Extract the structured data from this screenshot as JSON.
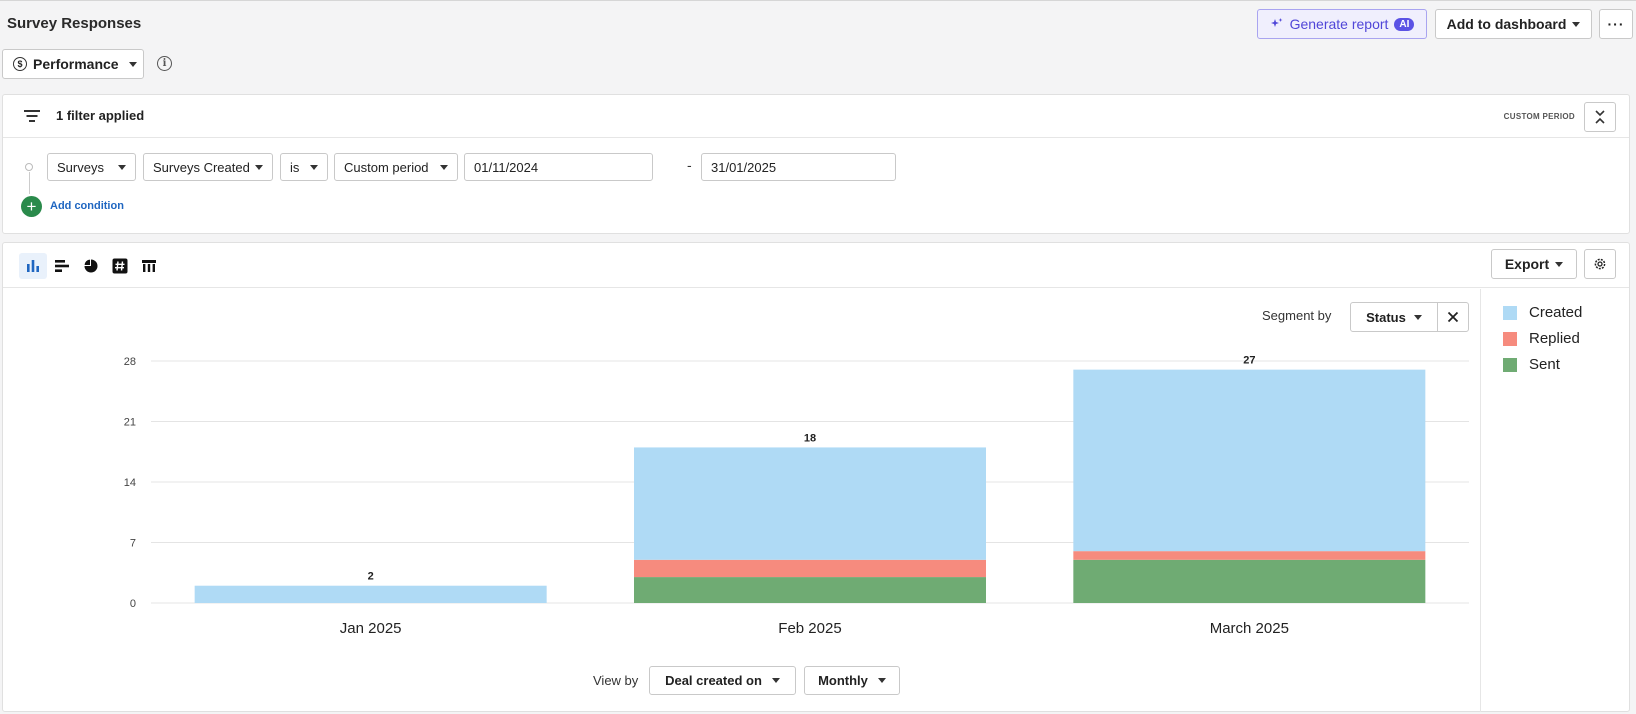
{
  "header": {
    "title": "Survey Responses",
    "generate_report": "Generate report",
    "ai_badge": "AI",
    "add_to_dashboard": "Add to dashboard",
    "more": "···"
  },
  "metric_selector": {
    "label": "Performance",
    "icon": "dollar-circle-icon"
  },
  "filters": {
    "summary": "1 filter applied",
    "period_label": "CUSTOM PERIOD",
    "condition": {
      "entity": "Surveys",
      "field": "Surveys Created",
      "operator": "is",
      "period": "Custom period",
      "start_date": "01/11/2024",
      "end_date": "31/01/2025",
      "separator": "-"
    },
    "add_condition": "Add condition"
  },
  "toolbar": {
    "view_types": [
      "column-chart-icon",
      "bar-chart-icon",
      "pie-chart-icon",
      "number-icon",
      "table-icon"
    ],
    "export": "Export"
  },
  "segment": {
    "label": "Segment by",
    "value": "Status"
  },
  "view_by": {
    "label": "View by",
    "field": "Deal created on",
    "interval": "Monthly"
  },
  "colors": {
    "Created": "#afdaf5",
    "Replied": "#f68b7e",
    "Sent": "#6fab73"
  },
  "chart_data": {
    "type": "bar",
    "stacked": true,
    "categories": [
      "Jan 2025",
      "Feb 2025",
      "March 2025"
    ],
    "series": [
      {
        "name": "Sent",
        "values": [
          0,
          3,
          5
        ]
      },
      {
        "name": "Replied",
        "values": [
          0,
          2,
          1
        ]
      },
      {
        "name": "Created",
        "values": [
          2,
          13,
          21
        ]
      }
    ],
    "totals": [
      2,
      18,
      27
    ],
    "yticks": [
      0,
      7,
      14,
      21,
      28
    ],
    "ylim": [
      0,
      28
    ],
    "legend": [
      "Created",
      "Replied",
      "Sent"
    ],
    "legend_position": "right",
    "grid": true
  }
}
